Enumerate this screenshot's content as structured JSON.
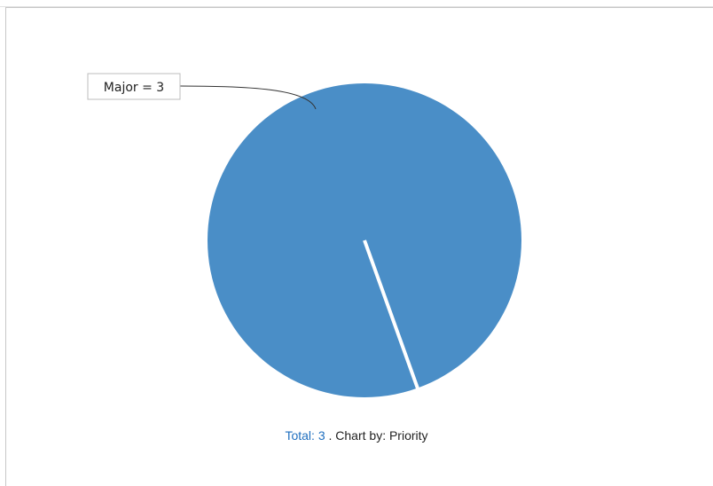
{
  "chart_data": {
    "type": "pie",
    "slices": [
      {
        "label": "Major",
        "value": 3,
        "color": "#4a8ec7"
      }
    ],
    "data_labels": [
      "Major = 3"
    ]
  },
  "footer": {
    "total_label": "Total:",
    "total_value": "3",
    "chart_by_text": ". Chart by: Priority"
  }
}
